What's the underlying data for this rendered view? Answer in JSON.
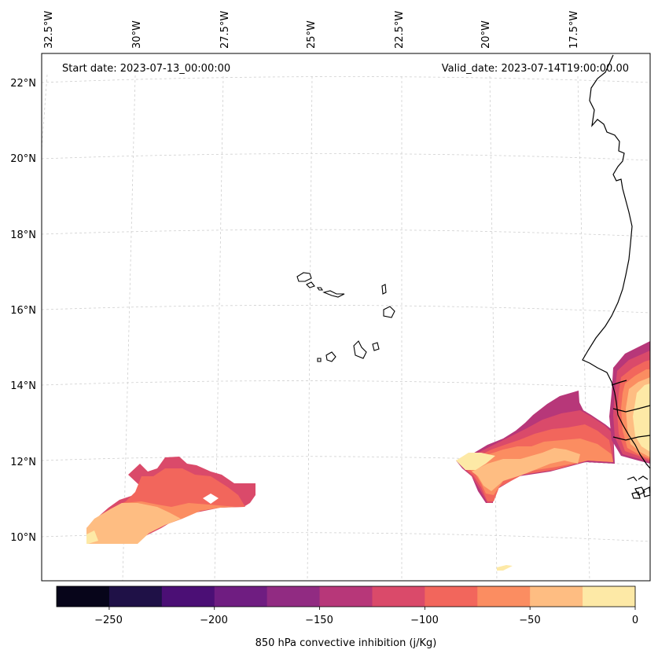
{
  "map": {
    "start_label": "Start date: 2023-07-13_00:00:00",
    "valid_label": "Valid_date: 2023-07-14T19:00:00.00",
    "lon_labels": [
      "32.5°W",
      "30°W",
      "27.5°W",
      "25°W",
      "22.5°W",
      "20°W",
      "17.5°W"
    ],
    "lat_labels": [
      "22°N",
      "20°N",
      "18°N",
      "16°N",
      "14°N",
      "12°N",
      "10°N"
    ],
    "region": "Cabo Verde / West African coast"
  },
  "colorbar": {
    "label": "850 hPa convective inhibition (j/Kg)",
    "min": -275,
    "max": 0,
    "tick_labels": [
      "−250",
      "−200",
      "−150",
      "−100",
      "−50",
      "0"
    ],
    "colors": [
      "#07051a",
      "#1f1147",
      "#4b0f75",
      "#6f1d81",
      "#912b82",
      "#b73779",
      "#da4a6a",
      "#f2665c",
      "#fb8d61",
      "#febd82",
      "#fde9a6"
    ]
  },
  "colors": {
    "cin_minus_150_125": "#b73779",
    "cin_minus_125_100": "#da4a6a",
    "cin_minus_100_75": "#f2665c",
    "cin_minus_75_50": "#fb8d61",
    "cin_minus_50_25": "#febd82",
    "cin_minus_25_0": "#fde9a6"
  }
}
